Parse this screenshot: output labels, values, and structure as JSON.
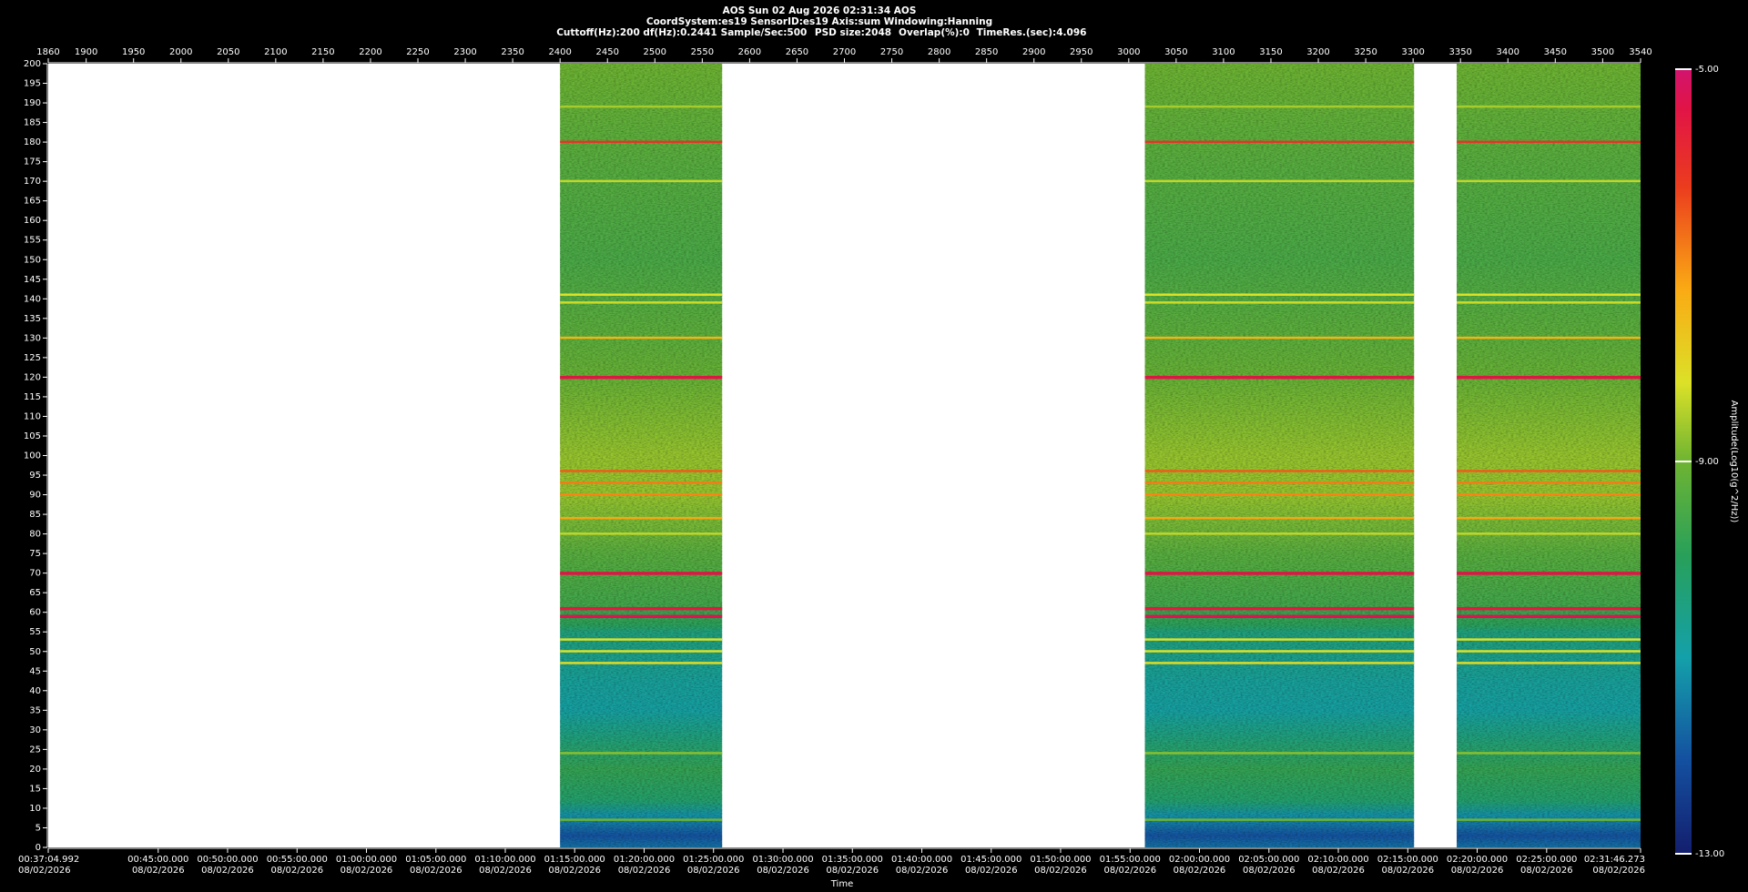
{
  "chart_data": {
    "type": "spectrogram",
    "title": "AOS  Sun 02 Aug 2026 02:31:34  AOS",
    "subtitle": "CoordSystem:es19   SensorID:es19   Axis:sum   Windowing:Hanning",
    "info": [
      "Cuttoff(Hz):200",
      "df(Hz):0.2441",
      "Sample/Sec:500",
      "PSD size:2048",
      "Overlap(%):0",
      "TimeRes.(sec):4.096"
    ],
    "x_label": "Time",
    "colorbar_label": "Amplitude(Log10(g^2/Hz))",
    "xlim": [
      1860,
      3540
    ],
    "xticks": [
      1860,
      1900,
      1950,
      2000,
      2050,
      2100,
      2150,
      2200,
      2250,
      2300,
      2350,
      2400,
      2450,
      2500,
      2550,
      2600,
      2650,
      2700,
      2750,
      2800,
      2850,
      2900,
      2950,
      3000,
      3050,
      3100,
      3150,
      3200,
      3250,
      3300,
      3350,
      3400,
      3450,
      3500,
      3540
    ],
    "time_ticks": [
      {
        "value": 1860,
        "label": "00:37:04.992",
        "date": "08/02/2026"
      },
      {
        "value": 1976.0,
        "label": "00:45:00.000",
        "date": "08/02/2026"
      },
      {
        "value": 2049.2,
        "label": "00:50:00.000",
        "date": "08/02/2026"
      },
      {
        "value": 2122.5,
        "label": "00:55:00.000",
        "date": "08/02/2026"
      },
      {
        "value": 2195.7,
        "label": "01:00:00.000",
        "date": "08/02/2026"
      },
      {
        "value": 2269.0,
        "label": "01:05:00.000",
        "date": "08/02/2026"
      },
      {
        "value": 2342.2,
        "label": "01:10:00.000",
        "date": "08/02/2026"
      },
      {
        "value": 2415.4,
        "label": "01:15:00.000",
        "date": "08/02/2026"
      },
      {
        "value": 2488.7,
        "label": "01:20:00.000",
        "date": "08/02/2026"
      },
      {
        "value": 2561.9,
        "label": "01:25:00.000",
        "date": "08/02/2026"
      },
      {
        "value": 2635.2,
        "label": "01:30:00.000",
        "date": "08/02/2026"
      },
      {
        "value": 2708.4,
        "label": "01:35:00.000",
        "date": "08/02/2026"
      },
      {
        "value": 2781.7,
        "label": "01:40:00.000",
        "date": "08/02/2026"
      },
      {
        "value": 2854.9,
        "label": "01:45:00.000",
        "date": "08/02/2026"
      },
      {
        "value": 2928.1,
        "label": "01:50:00.000",
        "date": "08/02/2026"
      },
      {
        "value": 3001.4,
        "label": "01:55:00.000",
        "date": "08/02/2026"
      },
      {
        "value": 3074.6,
        "label": "02:00:00.000",
        "date": "08/02/2026"
      },
      {
        "value": 3147.9,
        "label": "02:05:00.000",
        "date": "08/02/2026"
      },
      {
        "value": 3221.1,
        "label": "02:10:00.000",
        "date": "08/02/2026"
      },
      {
        "value": 3294.4,
        "label": "02:15:00.000",
        "date": "08/02/2026"
      },
      {
        "value": 3367.6,
        "label": "02:20:00.000",
        "date": "08/02/2026"
      },
      {
        "value": 3440.9,
        "label": "02:25:00.000",
        "date": "08/02/2026"
      },
      {
        "value": 3540,
        "label": "02:31:46.273",
        "date": "08/02/2026"
      }
    ],
    "ylim": [
      0,
      200
    ],
    "yticks": [
      0,
      5,
      10,
      15,
      20,
      25,
      30,
      35,
      40,
      45,
      50,
      55,
      60,
      65,
      70,
      75,
      80,
      85,
      90,
      95,
      100,
      105,
      110,
      115,
      120,
      125,
      130,
      135,
      140,
      145,
      150,
      155,
      160,
      165,
      170,
      175,
      180,
      185,
      190,
      195,
      200
    ],
    "clim": [
      -13,
      -5
    ],
    "cticks": [
      {
        "value": -13,
        "label": "-13.00"
      },
      {
        "value": -9,
        "label": "-9.00"
      },
      {
        "value": -5,
        "label": "-5.00"
      }
    ],
    "segments": [
      {
        "start": 2400,
        "end": 2571
      },
      {
        "start": 3017,
        "end": 3301
      },
      {
        "start": 3346,
        "end": 3540
      }
    ],
    "noise_profile": {
      "freq": [
        0,
        3,
        8,
        12,
        20,
        28,
        35,
        42,
        55,
        57,
        62,
        75,
        90,
        100,
        120,
        150,
        175,
        200
      ],
      "level": [
        -11.6,
        -12.0,
        -11.2,
        -10.2,
        -9.8,
        -10.4,
        -10.9,
        -10.8,
        -10.4,
        -9.9,
        -9.6,
        -9.3,
        -8.7,
        -8.7,
        -9.1,
        -9.5,
        -9.3,
        -9.0
      ]
    },
    "tones": {
      "freq": [
        189,
        180,
        170,
        141,
        139,
        130,
        120,
        96,
        93,
        90,
        84,
        80,
        70,
        61,
        59,
        53,
        50,
        47,
        24,
        7
      ],
      "level": [
        -8.6,
        -6.0,
        -8.4,
        -8.2,
        -8.3,
        -7.4,
        -5.4,
        -6.5,
        -6.8,
        -6.9,
        -7.2,
        -8.4,
        -5.4,
        -5.5,
        -5.3,
        -8.2,
        -8.2,
        -8.1,
        -8.8,
        -9.0
      ]
    }
  }
}
